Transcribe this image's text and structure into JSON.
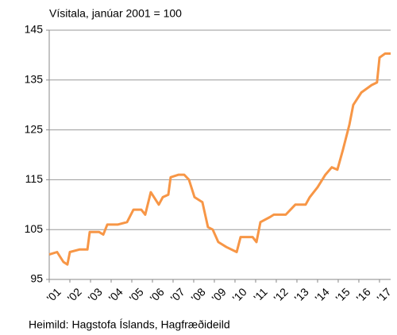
{
  "chart_data": {
    "type": "line",
    "title": "Vísitala, janúar 2001 = 100",
    "source": "Heimild: Hagstofa Íslands, Hagfræðideild",
    "color": "#f79646",
    "x": [
      2001.0,
      2001.38,
      2001.69,
      2001.88,
      2002.0,
      2002.46,
      2002.85,
      2002.96,
      2003.42,
      2003.62,
      2003.81,
      2004.31,
      2004.77,
      2005.08,
      2005.46,
      2005.65,
      2005.92,
      2006.31,
      2006.5,
      2006.77,
      2006.88,
      2007.27,
      2007.54,
      2007.77,
      2008.04,
      2008.42,
      2008.69,
      2008.92,
      2009.19,
      2009.58,
      2010.08,
      2010.27,
      2010.85,
      2011.04,
      2011.23,
      2011.69,
      2011.88,
      2012.46,
      2012.92,
      2013.42,
      2013.62,
      2014.0,
      2014.38,
      2014.69,
      2014.96,
      2015.23,
      2015.54,
      2015.73,
      2016.12,
      2016.62,
      2016.88,
      2017.0,
      2017.27,
      2017.54
    ],
    "values": [
      100,
      100.5,
      98.5,
      98,
      100.5,
      101,
      101,
      104.5,
      104.5,
      104,
      106,
      106,
      106.5,
      109,
      109,
      108,
      112.5,
      110,
      111.5,
      112,
      115.5,
      116,
      116,
      115,
      111.5,
      110.5,
      105.5,
      105,
      102.5,
      101.5,
      100.5,
      103.5,
      103.5,
      102.5,
      106.5,
      107.5,
      108,
      108,
      110,
      110,
      111.5,
      113.5,
      116,
      117.5,
      117,
      121,
      126,
      130,
      132.5,
      134,
      134.5,
      139.5,
      140.3,
      140.3
    ],
    "xlim": [
      2001,
      2017.54
    ],
    "xticks": [
      {
        "value": 2001.5,
        "label": "'01"
      },
      {
        "value": 2002.5,
        "label": "'02"
      },
      {
        "value": 2003.5,
        "label": "'03"
      },
      {
        "value": 2004.5,
        "label": "'04"
      },
      {
        "value": 2005.5,
        "label": "'05"
      },
      {
        "value": 2006.5,
        "label": "'06"
      },
      {
        "value": 2007.5,
        "label": "'07"
      },
      {
        "value": 2008.5,
        "label": "'08"
      },
      {
        "value": 2009.5,
        "label": "'09"
      },
      {
        "value": 2010.5,
        "label": "'10"
      },
      {
        "value": 2011.5,
        "label": "'11"
      },
      {
        "value": 2012.5,
        "label": "'12"
      },
      {
        "value": 2013.5,
        "label": "'13"
      },
      {
        "value": 2014.5,
        "label": "'14"
      },
      {
        "value": 2015.5,
        "label": "'15"
      },
      {
        "value": 2016.5,
        "label": "'16"
      },
      {
        "value": 2017.5,
        "label": "'17"
      }
    ],
    "ylim": [
      95,
      145
    ],
    "yticks": [
      95,
      105,
      115,
      125,
      135,
      145
    ],
    "grid": true
  }
}
